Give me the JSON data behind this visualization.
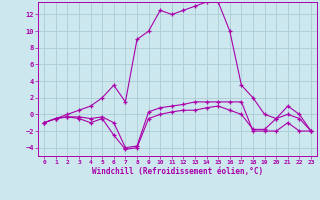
{
  "xlabel": "Windchill (Refroidissement éolien,°C)",
  "bg_color": "#cce8ee",
  "grid_color": "#aaccd4",
  "line_color": "#aa00aa",
  "xlim": [
    -0.5,
    23.5
  ],
  "ylim": [
    -5,
    13.5
  ],
  "xticks": [
    0,
    1,
    2,
    3,
    4,
    5,
    6,
    7,
    8,
    9,
    10,
    11,
    12,
    13,
    14,
    15,
    16,
    17,
    18,
    19,
    20,
    21,
    22,
    23
  ],
  "yticks": [
    -4,
    -2,
    0,
    2,
    4,
    6,
    8,
    10,
    12
  ],
  "line1_x": [
    0,
    1,
    2,
    3,
    4,
    5,
    6,
    7,
    8,
    9,
    10,
    11,
    12,
    13,
    14,
    15,
    16,
    17,
    18,
    19,
    20,
    21,
    22,
    23
  ],
  "line1_y": [
    -1.0,
    -0.5,
    0.0,
    0.5,
    1.0,
    2.0,
    3.5,
    1.5,
    9.0,
    10.0,
    12.5,
    12.0,
    12.5,
    13.0,
    13.5,
    13.5,
    10.0,
    3.5,
    2.0,
    0.0,
    -0.5,
    1.0,
    0.0,
    -2.0
  ],
  "line2_x": [
    0,
    1,
    2,
    3,
    4,
    5,
    6,
    7,
    8,
    9,
    10,
    11,
    12,
    13,
    14,
    15,
    16,
    17,
    18,
    19,
    20,
    21,
    22,
    23
  ],
  "line2_y": [
    -1.0,
    -0.5,
    -0.3,
    -0.3,
    -0.5,
    -0.3,
    -1.0,
    -4.0,
    -3.8,
    0.3,
    0.8,
    1.0,
    1.2,
    1.5,
    1.5,
    1.5,
    1.5,
    1.5,
    -2.0,
    -2.0,
    -2.0,
    -1.0,
    -2.0,
    -2.0
  ],
  "line3_x": [
    0,
    1,
    2,
    3,
    4,
    5,
    6,
    7,
    8,
    9,
    10,
    11,
    12,
    13,
    14,
    15,
    16,
    17,
    18,
    19,
    20,
    21,
    22,
    23
  ],
  "line3_y": [
    -1.0,
    -0.5,
    -0.3,
    -0.5,
    -1.0,
    -0.5,
    -2.5,
    -4.2,
    -4.0,
    -0.5,
    0.0,
    0.3,
    0.5,
    0.5,
    0.8,
    1.0,
    0.5,
    0.0,
    -1.8,
    -1.8,
    -0.5,
    0.0,
    -0.5,
    -2.0
  ]
}
